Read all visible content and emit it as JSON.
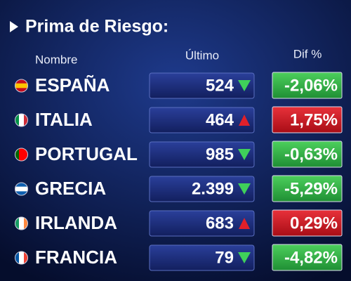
{
  "title": "Prima de Riesgo:",
  "table": {
    "headers": [
      "Nombre",
      "Último",
      "Dif %"
    ],
    "rows": [
      {
        "name": "ESPAÑA",
        "value": "524",
        "trend": "down",
        "dif": "-2,06%"
      },
      {
        "name": "ITALIA",
        "value": "464",
        "trend": "up",
        "dif": "1,75%"
      },
      {
        "name": "PORTUGAL",
        "value": "985",
        "trend": "down",
        "dif": "-0,63%"
      },
      {
        "name": "GRECIA",
        "value": "2.399",
        "trend": "down",
        "dif": "-5,29%"
      },
      {
        "name": "IRLANDA",
        "value": "683",
        "trend": "up",
        "dif": "0,29%"
      },
      {
        "name": "FRANCIA",
        "value": "79",
        "trend": "down",
        "dif": "-4,82%"
      }
    ]
  }
}
